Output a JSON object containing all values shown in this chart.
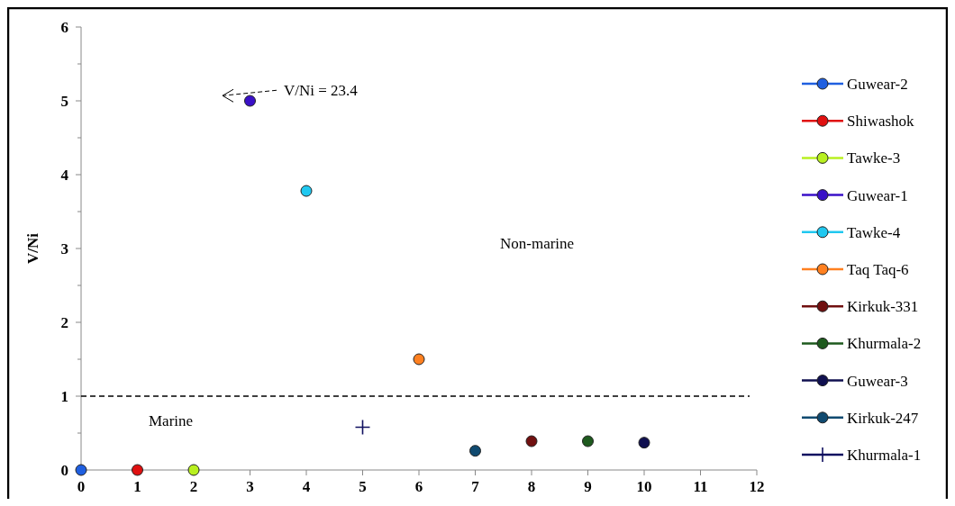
{
  "chart_data": {
    "type": "scatter",
    "ylabel": "V/Ni",
    "xlim": [
      0,
      12
    ],
    "xticks": [
      0,
      1,
      2,
      3,
      4,
      5,
      6,
      7,
      8,
      9,
      10,
      11,
      12
    ],
    "ylim": [
      0,
      6
    ],
    "yticks": [
      0,
      1,
      2,
      3,
      4,
      5,
      6
    ],
    "legend": "right",
    "marker": "circle",
    "series": [
      {
        "name": "Guwear-2",
        "color": "#1f5fe0",
        "x": [
          0
        ],
        "values": [
          0
        ]
      },
      {
        "name": "Shiwashok",
        "color": "#e01010",
        "x": [
          1
        ],
        "values": [
          0
        ]
      },
      {
        "name": "Tawke-3",
        "color": "#b8f020",
        "x": [
          2
        ],
        "values": [
          0
        ]
      },
      {
        "name": "Guwear-1",
        "color": "#3a10c8",
        "x": [
          3
        ],
        "values": [
          5
        ]
      },
      {
        "name": "Tawke-4",
        "color": "#20c8f0",
        "x": [
          4
        ],
        "values": [
          3.78
        ]
      },
      {
        "name": "Taq Taq-6",
        "color": "#ff8020",
        "x": [
          6
        ],
        "values": [
          1.5
        ]
      },
      {
        "name": "Kirkuk-331",
        "color": "#701010",
        "x": [
          8
        ],
        "values": [
          0.39
        ]
      },
      {
        "name": "Khurmala-2",
        "color": "#1e5a1e",
        "x": [
          9
        ],
        "values": [
          0.39
        ]
      },
      {
        "name": "Guwear-3",
        "color": "#101050",
        "x": [
          10
        ],
        "values": [
          0.37
        ]
      },
      {
        "name": "Kirkuk-247",
        "color": "#104a70",
        "x": [
          7
        ],
        "values": [
          0.26
        ]
      },
      {
        "name": "Khurmala-1",
        "color": "#101060",
        "x": [
          5
        ],
        "values": [
          0.58
        ],
        "marker": "cross"
      }
    ],
    "ref_lines": [
      {
        "axis": "y",
        "value": 1,
        "line_style": "dashed",
        "color": "#000000"
      }
    ],
    "annotations": [
      "V/Ni = 23.4",
      "Non-marine",
      "Marine"
    ]
  }
}
